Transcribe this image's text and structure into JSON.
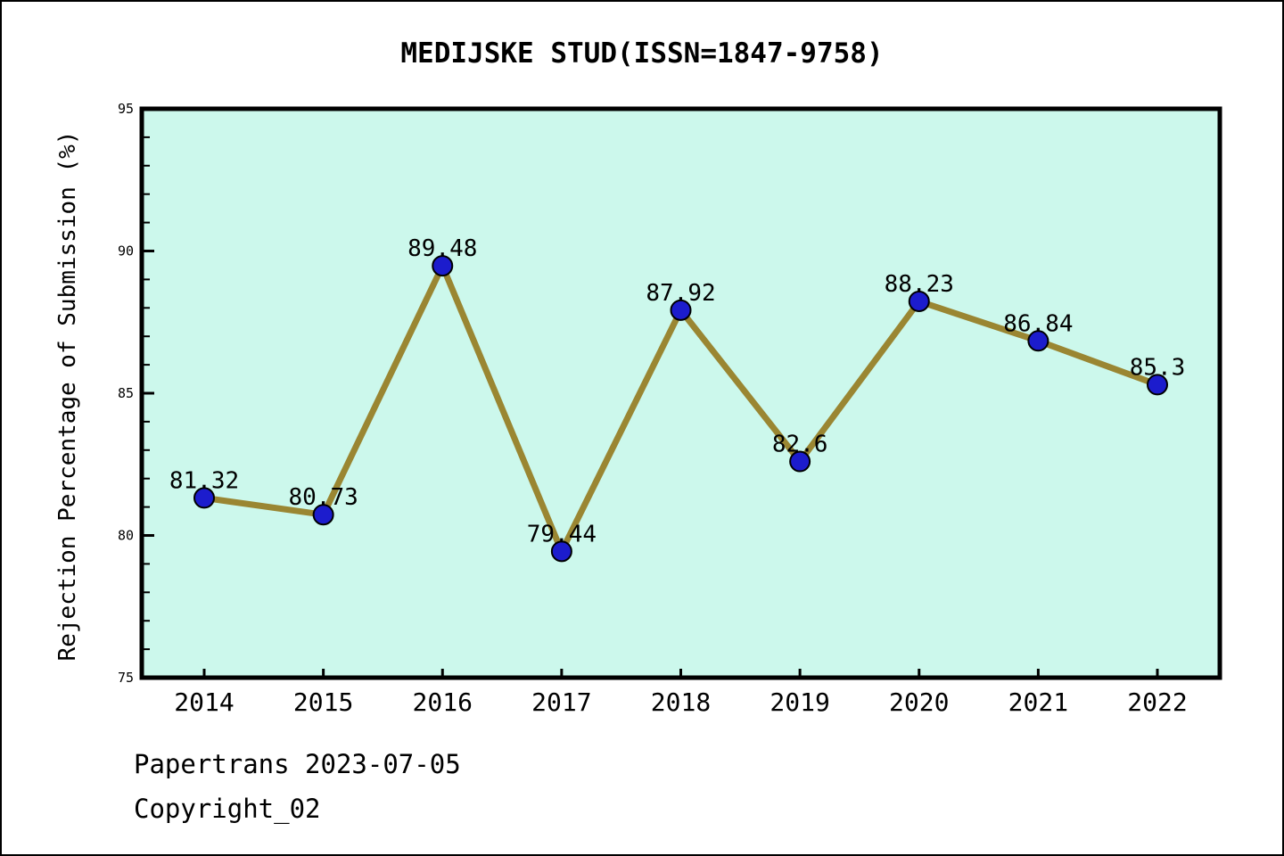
{
  "window": {
    "background_color": "#ffffff",
    "frame_border_color": "#000000"
  },
  "chart_data": {
    "type": "line",
    "title": "MEDIJSKE STUD(ISSN=1847-9758)",
    "xlabel": "",
    "ylabel": "Rejection Percentage of Submission (%)",
    "categories": [
      "2014",
      "2015",
      "2016",
      "2017",
      "2018",
      "2019",
      "2020",
      "2021",
      "2022"
    ],
    "values": [
      81.32,
      80.73,
      89.48,
      79.44,
      87.92,
      82.6,
      88.23,
      86.84,
      85.3
    ],
    "point_labels": [
      "81.32",
      "80.73",
      "89.48",
      "79.44",
      "87.92",
      "82.6",
      "88.23",
      "86.84",
      "85.3"
    ],
    "ylim": [
      75,
      95
    ],
    "yticks_major": [
      75,
      80,
      85,
      90,
      95
    ],
    "ytick_minor_step": 1,
    "grid": false,
    "legend": "none",
    "styles": {
      "plot_background": "#ccf8ec",
      "axis_color": "#000000",
      "line_color": "#9a8632",
      "marker_fill": "#1c1ccd",
      "marker_edge": "#000000",
      "label_color": "#000000"
    }
  },
  "footer": {
    "line1": "Papertrans 2023-07-05",
    "line2": "Copyright_02"
  }
}
